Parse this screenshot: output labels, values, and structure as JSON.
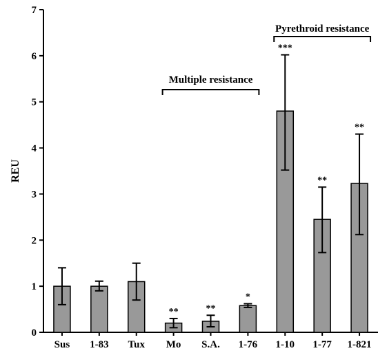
{
  "chart_data": {
    "type": "bar",
    "categories": [
      "Sus",
      "1-83",
      "Tux",
      "Mo",
      "S.A.",
      "1-76",
      "1-10",
      "1-77",
      "1-821"
    ],
    "values": [
      1.0,
      1.0,
      1.1,
      0.2,
      0.24,
      0.58,
      4.8,
      2.45,
      3.23
    ],
    "error_low": [
      0.6,
      0.9,
      0.7,
      0.1,
      0.12,
      0.54,
      3.52,
      1.73,
      2.12
    ],
    "error_high": [
      1.4,
      1.11,
      1.5,
      0.3,
      0.37,
      0.62,
      6.02,
      3.15,
      4.3
    ],
    "significance": [
      "",
      "",
      "",
      "**",
      "**",
      "*",
      "***",
      "**",
      "**"
    ],
    "xlabel": "",
    "ylabel": "REU",
    "ylim": [
      0,
      7
    ],
    "yticks": [
      0,
      1,
      2,
      3,
      4,
      5,
      6,
      7
    ],
    "bar_color": "#999999",
    "groups": [
      {
        "label": "Multiple resistance",
        "from": 3,
        "to": 5
      },
      {
        "label": "Pyrethroid resistance",
        "from": 6,
        "to": 8
      }
    ],
    "grid": false
  }
}
